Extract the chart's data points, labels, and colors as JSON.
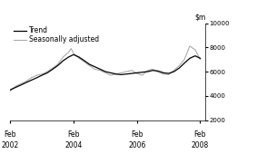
{
  "xlim_start": 2002.08,
  "xlim_end": 2008.25,
  "ylim": [
    2000,
    10000
  ],
  "yticks": [
    2000,
    4000,
    6000,
    8000,
    10000
  ],
  "xtick_positions": [
    2002.08,
    2004.08,
    2006.08,
    2008.08
  ],
  "xtick_labels_top": [
    "Feb",
    "Feb",
    "Feb",
    "Feb"
  ],
  "xtick_labels_bot": [
    "2002",
    "2004",
    "2006",
    "2008"
  ],
  "legend_entries": [
    "Trend",
    "Seasonally adjusted"
  ],
  "trend_color": "#000000",
  "sa_color": "#aaaaaa",
  "trend_data": [
    [
      2002.08,
      4500
    ],
    [
      2002.25,
      4700
    ],
    [
      2002.42,
      4900
    ],
    [
      2002.58,
      5100
    ],
    [
      2002.75,
      5300
    ],
    [
      2002.92,
      5500
    ],
    [
      2003.08,
      5700
    ],
    [
      2003.25,
      5900
    ],
    [
      2003.42,
      6200
    ],
    [
      2003.58,
      6500
    ],
    [
      2003.75,
      6900
    ],
    [
      2003.92,
      7200
    ],
    [
      2004.08,
      7400
    ],
    [
      2004.25,
      7200
    ],
    [
      2004.42,
      6900
    ],
    [
      2004.58,
      6600
    ],
    [
      2004.75,
      6400
    ],
    [
      2004.92,
      6200
    ],
    [
      2005.08,
      6000
    ],
    [
      2005.25,
      5900
    ],
    [
      2005.42,
      5800
    ],
    [
      2005.58,
      5750
    ],
    [
      2005.75,
      5800
    ],
    [
      2005.92,
      5850
    ],
    [
      2006.08,
      5900
    ],
    [
      2006.25,
      5950
    ],
    [
      2006.42,
      6000
    ],
    [
      2006.58,
      6100
    ],
    [
      2006.75,
      6050
    ],
    [
      2006.92,
      5900
    ],
    [
      2007.08,
      5850
    ],
    [
      2007.25,
      6000
    ],
    [
      2007.42,
      6300
    ],
    [
      2007.58,
      6700
    ],
    [
      2007.75,
      7100
    ],
    [
      2007.92,
      7300
    ],
    [
      2008.08,
      7100
    ]
  ],
  "sa_data": [
    [
      2002.08,
      4400
    ],
    [
      2002.25,
      4800
    ],
    [
      2002.42,
      5000
    ],
    [
      2002.58,
      5200
    ],
    [
      2002.75,
      5500
    ],
    [
      2002.92,
      5700
    ],
    [
      2003.08,
      5800
    ],
    [
      2003.25,
      6000
    ],
    [
      2003.42,
      6300
    ],
    [
      2003.58,
      6600
    ],
    [
      2003.75,
      7200
    ],
    [
      2003.92,
      7600
    ],
    [
      2004.0,
      7900
    ],
    [
      2004.08,
      7500
    ],
    [
      2004.25,
      7100
    ],
    [
      2004.42,
      6800
    ],
    [
      2004.58,
      6500
    ],
    [
      2004.75,
      6200
    ],
    [
      2004.92,
      6100
    ],
    [
      2005.08,
      5900
    ],
    [
      2005.25,
      5700
    ],
    [
      2005.42,
      5800
    ],
    [
      2005.58,
      5900
    ],
    [
      2005.75,
      6000
    ],
    [
      2005.92,
      6100
    ],
    [
      2006.08,
      5850
    ],
    [
      2006.25,
      5700
    ],
    [
      2006.42,
      6100
    ],
    [
      2006.58,
      6200
    ],
    [
      2006.75,
      5950
    ],
    [
      2006.92,
      5800
    ],
    [
      2007.08,
      5750
    ],
    [
      2007.25,
      6100
    ],
    [
      2007.42,
      6500
    ],
    [
      2007.58,
      7000
    ],
    [
      2007.75,
      8100
    ],
    [
      2007.92,
      7800
    ],
    [
      2008.08,
      7000
    ]
  ]
}
